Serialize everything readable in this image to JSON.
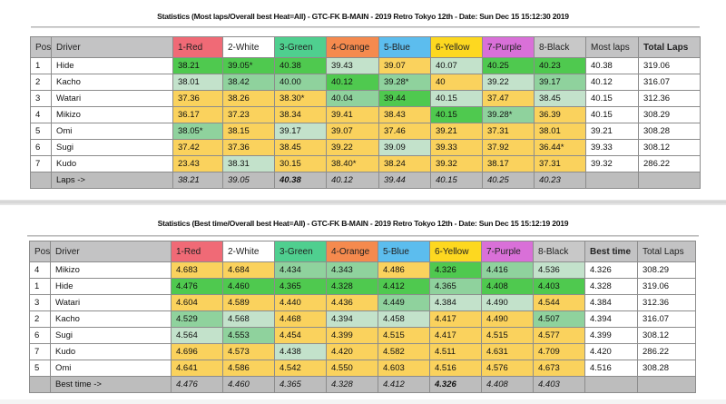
{
  "table1": {
    "title": "Statistics (Most laps/Overall best Heat=All) - GTC-FK B-MAIN - 2019 Retro Tokyo 12th - Date: Sun Dec 15 15:12:30 2019",
    "headers": [
      "Pos",
      "Driver",
      "1-Red",
      "2-White",
      "3-Green",
      "4-Orange",
      "5-Blue",
      "6-Yellow",
      "7-Purple",
      "8-Black",
      "Most laps",
      "Total Laps"
    ],
    "rows": [
      {
        "pos": "1",
        "driver": "Hide",
        "heats": [
          "38.21",
          "39.05*",
          "40.38",
          "39.43",
          "39.07",
          "40.07",
          "40.25",
          "40.23"
        ],
        "shade": [
          "best",
          "best",
          "best",
          "fair",
          "low",
          "fair",
          "best",
          "best"
        ],
        "summary": "40.38",
        "total": "319.06",
        "summary_bold": true,
        "total_bold": true
      },
      {
        "pos": "2",
        "driver": "Kacho",
        "heats": [
          "38.01",
          "38.42",
          "40.00",
          "40.12",
          "39.28*",
          "40",
          "39.22",
          "39.17"
        ],
        "shade": [
          "fair",
          "good",
          "good",
          "best",
          "good",
          "low",
          "fair",
          "good"
        ],
        "summary": "40.12",
        "total": "316.07"
      },
      {
        "pos": "3",
        "driver": "Watari",
        "heats": [
          "37.36",
          "38.26",
          "38.30*",
          "40.04",
          "39.44",
          "40.15",
          "37.47",
          "38.45"
        ],
        "shade": [
          "low",
          "low",
          "low",
          "good",
          "best",
          "fair",
          "low",
          "fair"
        ],
        "summary": "40.15",
        "total": "312.36"
      },
      {
        "pos": "4",
        "driver": "Mikizo",
        "heats": [
          "36.17",
          "37.23",
          "38.34",
          "39.41",
          "38.43",
          "40.15",
          "39.28*",
          "36.39"
        ],
        "shade": [
          "low",
          "low",
          "low",
          "low",
          "low",
          "best",
          "good",
          "low"
        ],
        "summary": "40.15",
        "total": "308.29"
      },
      {
        "pos": "5",
        "driver": "Omi",
        "heats": [
          "38.05*",
          "38.15",
          "39.17",
          "39.07",
          "37.46",
          "39.21",
          "37.31",
          "38.01"
        ],
        "shade": [
          "good",
          "low",
          "fair",
          "low",
          "low",
          "low",
          "low",
          "low"
        ],
        "summary": "39.21",
        "total": "308.28"
      },
      {
        "pos": "6",
        "driver": "Sugi",
        "heats": [
          "37.42",
          "37.36",
          "38.45",
          "39.22",
          "39.09",
          "39.33",
          "37.92",
          "36.44*"
        ],
        "shade": [
          "low",
          "low",
          "low",
          "low",
          "fair",
          "low",
          "low",
          "low"
        ],
        "summary": "39.33",
        "total": "308.12"
      },
      {
        "pos": "7",
        "driver": "Kudo",
        "heats": [
          "23.43",
          "38.31",
          "30.15",
          "38.40*",
          "38.24",
          "39.32",
          "38.17",
          "37.31"
        ],
        "shade": [
          "low",
          "fair",
          "low",
          "low",
          "low",
          "low",
          "low",
          "low"
        ],
        "summary": "39.32",
        "total": "286.22"
      }
    ],
    "footer": {
      "label": "Laps ->",
      "values": [
        "38.21",
        "39.05",
        "40.38",
        "40.12",
        "39.44",
        "40.15",
        "40.25",
        "40.23"
      ],
      "bold_index": 2
    }
  },
  "table2": {
    "title": "Statistics (Best time/Overall best Heat=All) - GTC-FK B-MAIN - 2019 Retro Tokyo 12th - Date: Sun Dec 15 15:12:19 2019",
    "headers": [
      "Pos",
      "Driver",
      "1-Red",
      "2-White",
      "3-Green",
      "4-Orange",
      "5-Blue",
      "6-Yellow",
      "7-Purple",
      "8-Black",
      "Best time",
      "Total Laps"
    ],
    "rows": [
      {
        "pos": "4",
        "driver": "Mikizo",
        "heats": [
          "4.683",
          "4.684",
          "4.434",
          "4.343",
          "4.486",
          "4.326",
          "4.416",
          "4.536"
        ],
        "shade": [
          "low",
          "low",
          "good",
          "good",
          "low",
          "best",
          "good",
          "fair"
        ],
        "summary": "4.326",
        "total": "308.29",
        "summary_bold": true
      },
      {
        "pos": "1",
        "driver": "Hide",
        "heats": [
          "4.476",
          "4.460",
          "4.365",
          "4.328",
          "4.412",
          "4.365",
          "4.408",
          "4.403"
        ],
        "shade": [
          "best",
          "best",
          "best",
          "best",
          "best",
          "good",
          "best",
          "best"
        ],
        "summary": "4.328",
        "total": "319.06",
        "total_bold": true
      },
      {
        "pos": "3",
        "driver": "Watari",
        "heats": [
          "4.604",
          "4.589",
          "4.440",
          "4.436",
          "4.449",
          "4.384",
          "4.490",
          "4.544"
        ],
        "shade": [
          "low",
          "low",
          "low",
          "low",
          "good",
          "fair",
          "fair",
          "low"
        ],
        "summary": "4.384",
        "total": "312.36"
      },
      {
        "pos": "2",
        "driver": "Kacho",
        "heats": [
          "4.529",
          "4.568",
          "4.468",
          "4.394",
          "4.458",
          "4.417",
          "4.490",
          "4.507"
        ],
        "shade": [
          "good",
          "fair",
          "low",
          "fair",
          "fair",
          "low",
          "low",
          "good"
        ],
        "summary": "4.394",
        "total": "316.07"
      },
      {
        "pos": "6",
        "driver": "Sugi",
        "heats": [
          "4.564",
          "4.553",
          "4.454",
          "4.399",
          "4.515",
          "4.417",
          "4.515",
          "4.577"
        ],
        "shade": [
          "fair",
          "good",
          "low",
          "low",
          "low",
          "low",
          "low",
          "low"
        ],
        "summary": "4.399",
        "total": "308.12"
      },
      {
        "pos": "7",
        "driver": "Kudo",
        "heats": [
          "4.696",
          "4.573",
          "4.438",
          "4.420",
          "4.582",
          "4.511",
          "4.631",
          "4.709"
        ],
        "shade": [
          "low",
          "low",
          "fair",
          "low",
          "low",
          "low",
          "low",
          "low"
        ],
        "summary": "4.420",
        "total": "286.22"
      },
      {
        "pos": "5",
        "driver": "Omi",
        "heats": [
          "4.641",
          "4.586",
          "4.542",
          "4.550",
          "4.603",
          "4.516",
          "4.576",
          "4.673"
        ],
        "shade": [
          "low",
          "low",
          "low",
          "low",
          "low",
          "low",
          "low",
          "low"
        ],
        "summary": "4.516",
        "total": "308.28"
      }
    ],
    "footer": {
      "label": "Best time ->",
      "values": [
        "4.476",
        "4.460",
        "4.365",
        "4.328",
        "4.412",
        "4.326",
        "4.408",
        "4.403"
      ],
      "bold_index": 5
    }
  },
  "colors": {
    "heat_headers": [
      "#f06a76",
      "#ffffff",
      "#4fcf8f",
      "#f58a4e",
      "#5cbdee",
      "#fdd820",
      "#d970d8",
      "#c8c8c8"
    ],
    "shade_best": "#4fc94f",
    "shade_good": "#8fd29d",
    "shade_fair": "#c3e2cb",
    "shade_low": "#fad25d",
    "header_gray": "#c3c3c4"
  }
}
